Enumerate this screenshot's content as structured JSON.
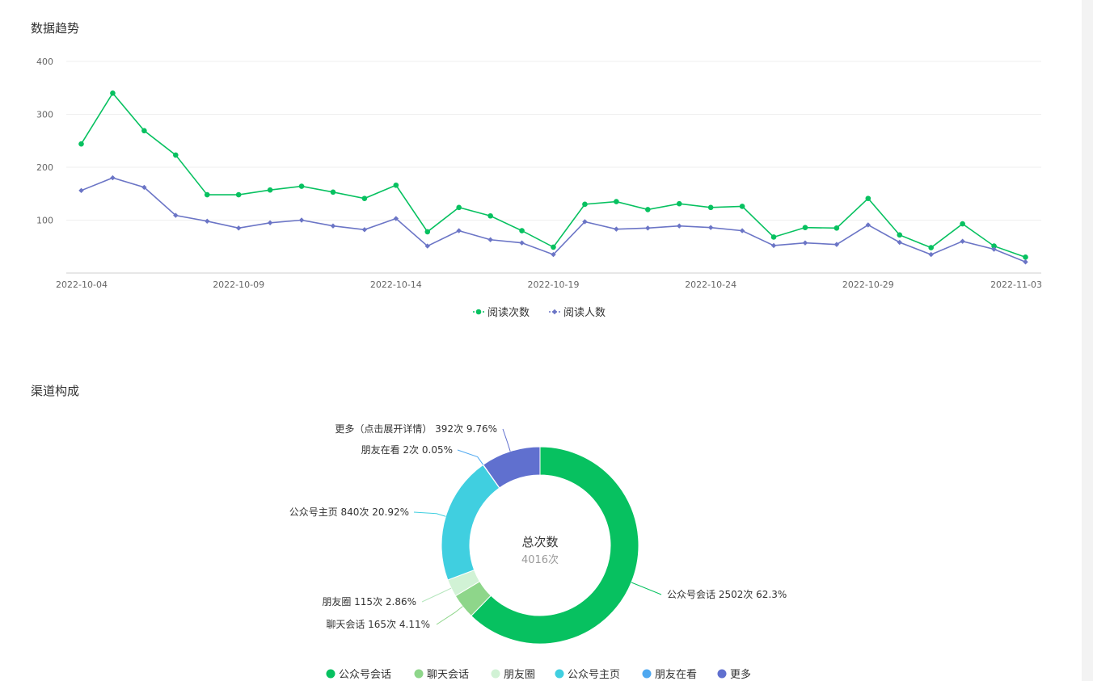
{
  "page": {
    "trend_title": "数据趋势",
    "channel_title": "渠道构成"
  },
  "chart_data": [
    {
      "type": "line",
      "title": "数据趋势",
      "x": [
        "2022-10-04",
        "2022-10-05",
        "2022-10-06",
        "2022-10-07",
        "2022-10-08",
        "2022-10-09",
        "2022-10-10",
        "2022-10-11",
        "2022-10-12",
        "2022-10-13",
        "2022-10-14",
        "2022-10-15",
        "2022-10-16",
        "2022-10-17",
        "2022-10-18",
        "2022-10-19",
        "2022-10-20",
        "2022-10-21",
        "2022-10-22",
        "2022-10-23",
        "2022-10-24",
        "2022-10-25",
        "2022-10-26",
        "2022-10-27",
        "2022-10-28",
        "2022-10-29",
        "2022-10-30",
        "2022-10-31",
        "2022-11-01",
        "2022-11-02",
        "2022-11-03"
      ],
      "x_tick_labels": [
        "2022-10-04",
        "2022-10-09",
        "2022-10-14",
        "2022-10-19",
        "2022-10-24",
        "2022-10-29",
        "2022-11-03"
      ],
      "ylim": [
        0,
        400
      ],
      "y_ticks": [
        "100",
        "200",
        "300",
        "400"
      ],
      "grid": true,
      "legend_position": "bottom-center",
      "series": [
        {
          "name": "阅读次数",
          "color": "#07c160",
          "marker": "circle",
          "values": [
            244,
            340,
            269,
            223,
            148,
            148,
            157,
            164,
            153,
            141,
            166,
            78,
            124,
            108,
            80,
            49,
            130,
            135,
            120,
            131,
            124,
            126,
            68,
            86,
            85,
            141,
            72,
            48,
            93,
            51,
            30
          ]
        },
        {
          "name": "阅读人数",
          "color": "#6b75c6",
          "marker": "diamond",
          "values": [
            156,
            180,
            162,
            109,
            98,
            85,
            95,
            100,
            89,
            82,
            103,
            51,
            80,
            63,
            57,
            35,
            97,
            83,
            85,
            89,
            86,
            80,
            52,
            57,
            54,
            91,
            58,
            35,
            60,
            45,
            21
          ]
        }
      ]
    },
    {
      "type": "pie",
      "title": "渠道构成",
      "center_title": "总次数",
      "center_value": "4016次",
      "legend_position": "bottom-center",
      "slices": [
        {
          "name": "公众号会话",
          "value": 2502,
          "label": "公众号会话 2502次 62.3%",
          "color": "#07c160"
        },
        {
          "name": "聊天会话",
          "value": 165,
          "label": "聊天会话 165次 4.11%",
          "color": "#8ed68a"
        },
        {
          "name": "朋友圈",
          "value": 115,
          "label": "朋友圈 115次 2.86%",
          "color": "#d1f2d5"
        },
        {
          "name": "公众号主页",
          "value": 840,
          "label": "公众号主页 840次 20.92%",
          "color": "#40cfe0"
        },
        {
          "name": "朋友在看",
          "value": 2,
          "label": "朋友在看 2次 0.05%",
          "color": "#4fa8f0"
        },
        {
          "name": "更多",
          "value": 392,
          "label": "更多（点击展开详情） 392次 9.76%",
          "color": "#6070cf"
        }
      ]
    }
  ]
}
